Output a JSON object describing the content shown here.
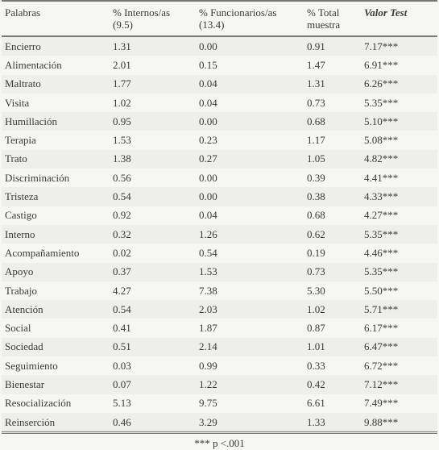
{
  "table": {
    "header": [
      [
        "Palabras"
      ],
      [
        "% Internos/as",
        "(9.5)"
      ],
      [
        "% Funcionarios/as",
        "(13.4)"
      ],
      [
        "% Total",
        "muestra"
      ],
      [
        "Valor Test"
      ]
    ],
    "rows": [
      [
        "Encierro",
        "1.31",
        "0.00",
        "0.91",
        "7.17***"
      ],
      [
        "Alimentación",
        "2.01",
        "0.15",
        "1.47",
        "6.91***"
      ],
      [
        "Maltrato",
        "1.77",
        "0.04",
        "1.31",
        "6.26***"
      ],
      [
        "Visita",
        "1.02",
        "0.04",
        "0.73",
        "5.35***"
      ],
      [
        "Humillación",
        "0.95",
        "0.00",
        "0.68",
        "5.10***"
      ],
      [
        "Terapia",
        "1.53",
        "0.23",
        "1.17",
        "5.08***"
      ],
      [
        "Trato",
        "1.38",
        "0.27",
        "1.05",
        "4.82***"
      ],
      [
        "Discriminación",
        "0.56",
        "0.00",
        "0.39",
        "4.41***"
      ],
      [
        "Tristeza",
        "0.54",
        "0.00",
        "0.38",
        "4.33***"
      ],
      [
        "Castigo",
        "0.92",
        "0.04",
        "0.68",
        "4.27***"
      ],
      [
        "Interno",
        "0.32",
        "1.26",
        "0.62",
        "5.35***"
      ],
      [
        "Acompañamiento",
        "0.02",
        "0.54",
        "0.19",
        "4.46***"
      ],
      [
        "Apoyo",
        "0.37",
        "1.53",
        "0.73",
        "5.35***"
      ],
      [
        "Trabajo",
        "4.27",
        "7.38",
        "5.30",
        "5.50***"
      ],
      [
        "Atención",
        "0.54",
        "2.03",
        "1.02",
        "5.71***"
      ],
      [
        "Social",
        "0.41",
        "1.87",
        "0.87",
        "6.17***"
      ],
      [
        "Sociedad",
        "0.51",
        "2.14",
        "1.01",
        "6.47***"
      ],
      [
        "Seguimiento",
        "0.03",
        "0.99",
        "0.33",
        "6.72***"
      ],
      [
        "Bienestar",
        "0.07",
        "1.22",
        "0.42",
        "7.12***"
      ],
      [
        "Resocialización",
        "5.13",
        "9.75",
        "6.61",
        "7.49***"
      ],
      [
        "Reinserción",
        "0.46",
        "3.29",
        "1.33",
        "9.88***"
      ]
    ],
    "footnote": "*** p <.001"
  }
}
